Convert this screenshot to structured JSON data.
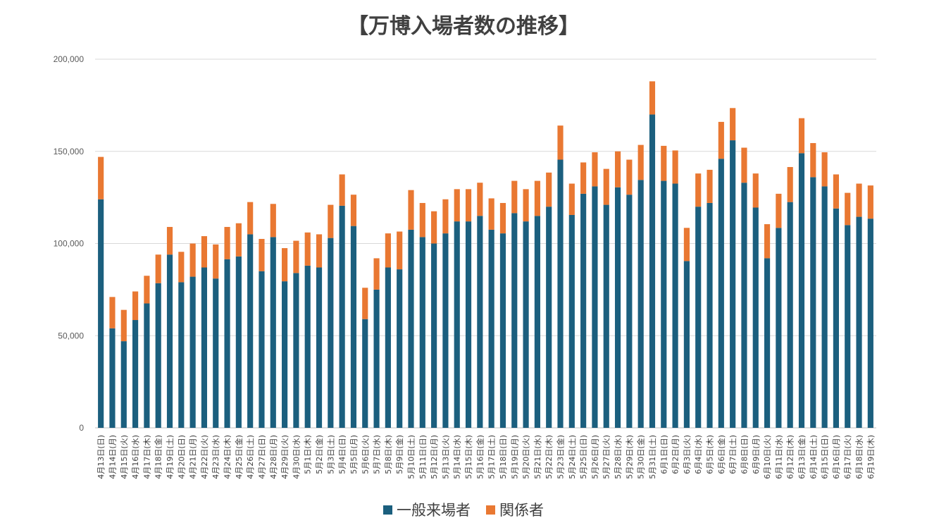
{
  "chart_data": {
    "type": "bar",
    "stacked": true,
    "title": "【万博入場者数の推移】",
    "xlabel": "",
    "ylabel": "",
    "ylim": [
      0,
      200000
    ],
    "yticks": [
      "0",
      "50,000",
      "100,000",
      "150,000",
      "200,000"
    ],
    "grid": true,
    "legend_position": "bottom",
    "categories": [
      "4月13日(日)",
      "4月14日(月)",
      "4月15日(火)",
      "4月16日(水)",
      "4月17日(木)",
      "4月18日(金)",
      "4月19日(土)",
      "4月20日(日)",
      "4月21日(月)",
      "4月22日(火)",
      "4月23日(水)",
      "4月24日(木)",
      "4月25日(金)",
      "4月26日(土)",
      "4月27日(日)",
      "4月28日(月)",
      "4月29日(火)",
      "4月30日(水)",
      "5月1日(木)",
      "5月2日(金)",
      "5月3日(土)",
      "5月4日(日)",
      "5月5日(月)",
      "5月6日(火)",
      "5月7日(水)",
      "5月8日(木)",
      "5月9日(金)",
      "5月10日(土)",
      "5月11日(日)",
      "5月12日(月)",
      "5月13日(火)",
      "5月14日(水)",
      "5月15日(木)",
      "5月16日(金)",
      "5月17日(土)",
      "5月18日(日)",
      "5月19日(月)",
      "5月20日(火)",
      "5月21日(水)",
      "5月22日(木)",
      "5月23日(金)",
      "5月24日(土)",
      "5月25日(日)",
      "5月26日(月)",
      "5月27日(火)",
      "5月28日(水)",
      "5月29日(木)",
      "5月30日(金)",
      "5月31日(土)",
      "6月1日(日)",
      "6月2日(月)",
      "6月3日(火)",
      "6月4日(水)",
      "6月5日(木)",
      "6月6日(金)",
      "6月7日(土)",
      "6月8日(日)",
      "6月9日(月)",
      "6月10日(火)",
      "6月11日(水)",
      "6月12日(木)",
      "6月13日(金)",
      "6月14日(土)",
      "6月15日(日)",
      "6月16日(月)",
      "6月17日(火)",
      "6月18日(水)",
      "6月19日(木)"
    ],
    "series": [
      {
        "name": "一般来場者",
        "color": "#1b5f7e",
        "values": [
          124000,
          54000,
          47000,
          58500,
          67500,
          78500,
          94000,
          79000,
          82000,
          87000,
          81000,
          91500,
          93000,
          105000,
          85000,
          103500,
          79500,
          84000,
          88000,
          87000,
          103000,
          120500,
          109500,
          59000,
          75000,
          87000,
          86000,
          107500,
          103500,
          100000,
          105500,
          112000,
          112000,
          115000,
          107500,
          105500,
          116500,
          112000,
          115000,
          120000,
          145500,
          115500,
          127000,
          131000,
          121000,
          130500,
          126500,
          134500,
          170000,
          134000,
          132500,
          90500,
          120000,
          122000,
          146000,
          156000,
          133000,
          119500,
          92000,
          108500,
          122500,
          149000,
          136000,
          131000,
          119000,
          110000,
          114500,
          113500
        ]
      },
      {
        "name": "関係者",
        "color": "#e97832",
        "values": [
          23000,
          17000,
          17000,
          15500,
          15000,
          15500,
          15000,
          16500,
          18000,
          17000,
          18500,
          17500,
          18000,
          17500,
          17500,
          18000,
          18000,
          17500,
          18000,
          18000,
          18000,
          17000,
          17000,
          17000,
          17000,
          18500,
          20500,
          21500,
          18500,
          17500,
          18500,
          17500,
          17500,
          18000,
          17000,
          16500,
          17500,
          17500,
          19000,
          18500,
          18500,
          17000,
          17000,
          18500,
          19500,
          19500,
          19000,
          19000,
          18000,
          19000,
          18000,
          18000,
          18000,
          18000,
          20000,
          17500,
          19000,
          18500,
          18500,
          18500,
          19000,
          19000,
          18500,
          18500,
          18500,
          17500,
          18000,
          18000
        ]
      }
    ]
  }
}
